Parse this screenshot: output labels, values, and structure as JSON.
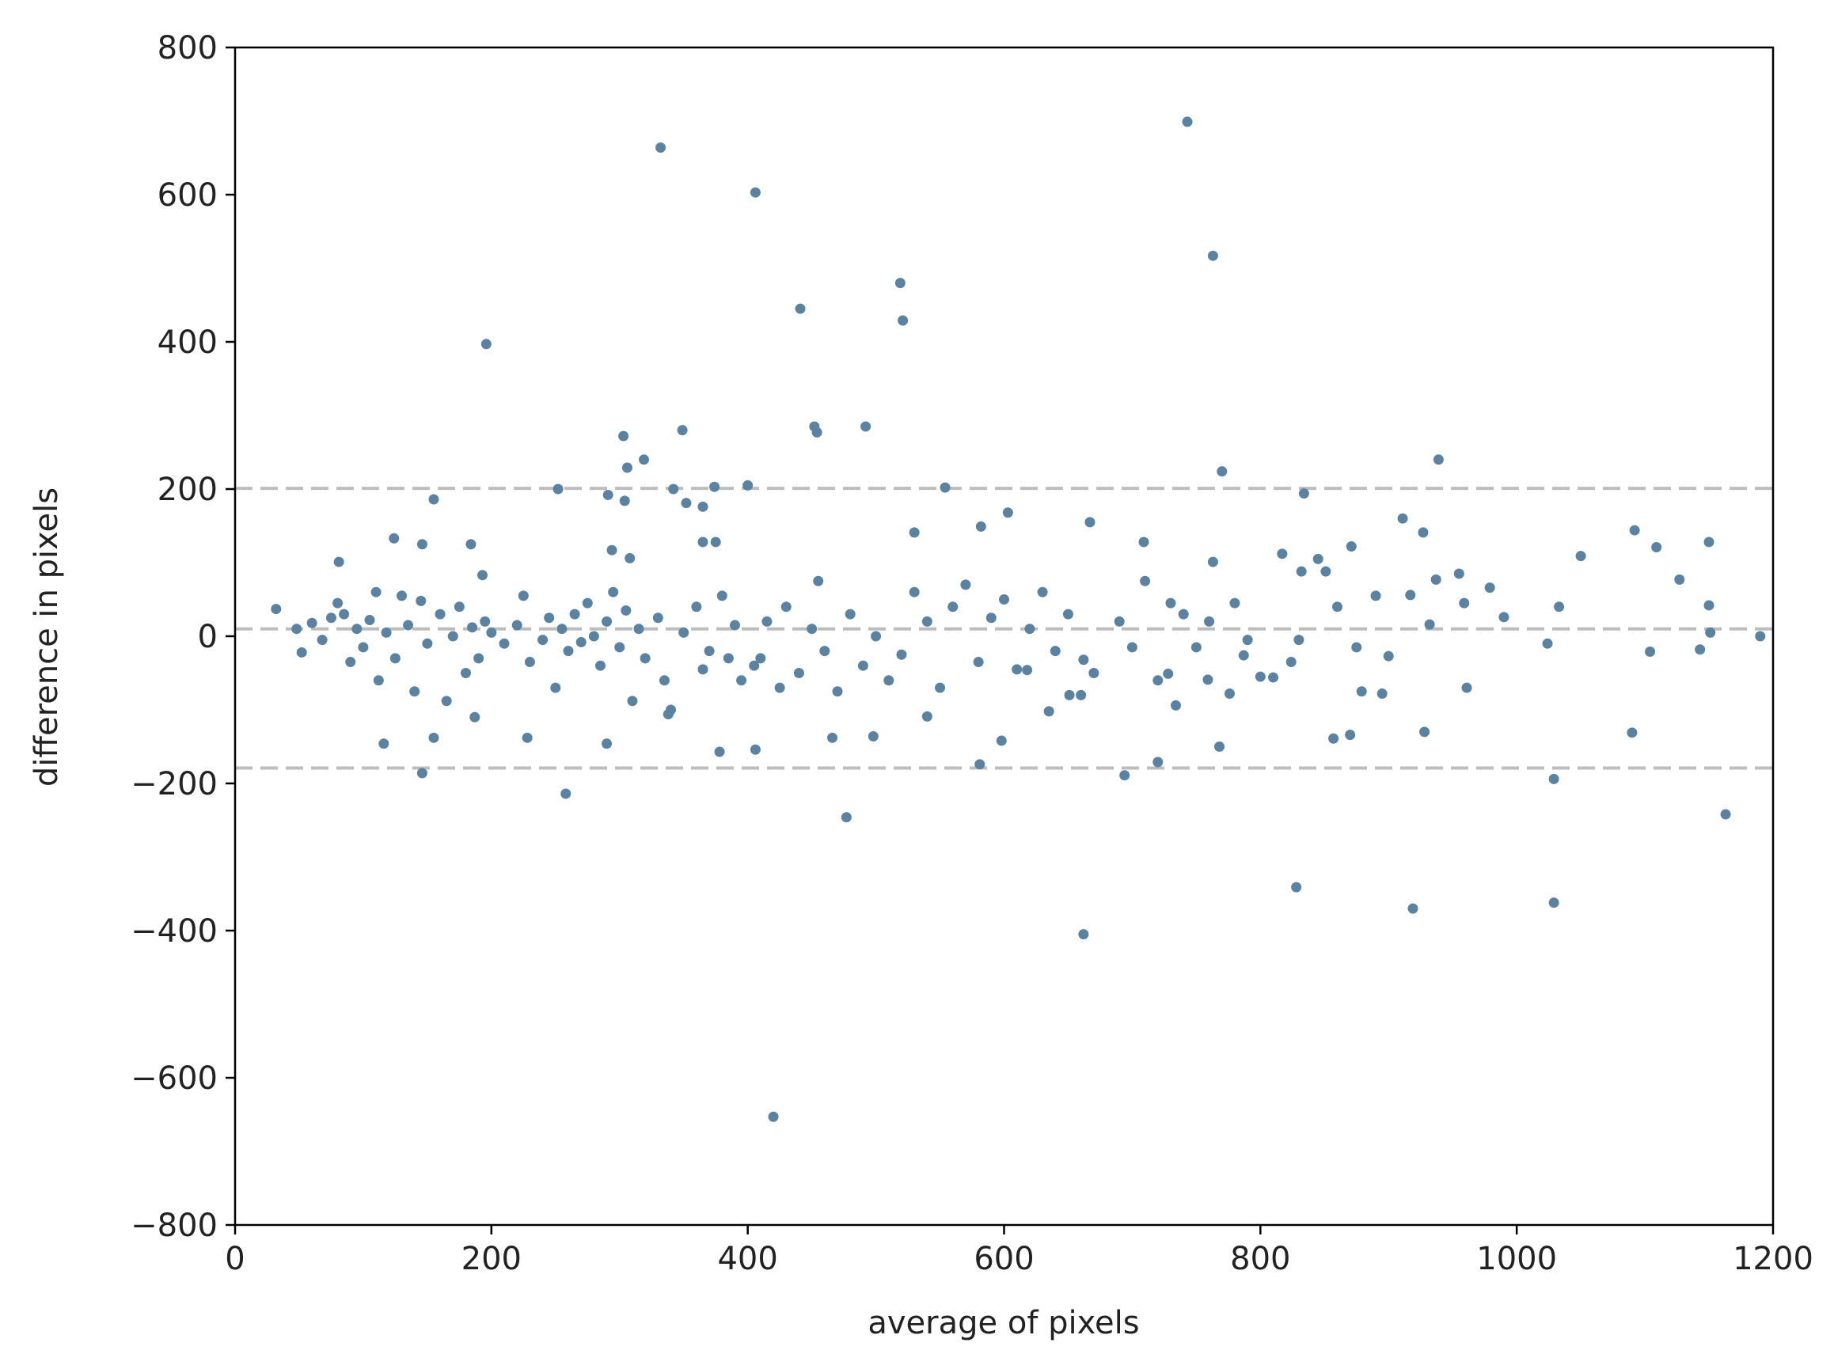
{
  "chart_data": {
    "type": "scatter",
    "xlabel": "average of pixels",
    "ylabel": "difference in pixels",
    "color": "#5b82a1",
    "reference_lines": [
      201,
      10,
      -179
    ],
    "xlim": [
      0,
      1200
    ],
    "xticks": [
      0,
      200,
      400,
      600,
      800,
      1000,
      1200
    ],
    "ylim": [
      -800,
      800
    ],
    "yticks": [
      {
        "value": -800,
        "label": "−800"
      },
      {
        "value": -600,
        "label": "−600"
      },
      {
        "value": -400,
        "label": "−400"
      },
      {
        "value": -200,
        "label": "−200"
      },
      0,
      200,
      400,
      600,
      800
    ],
    "x": [
      332,
      406,
      743,
      763,
      196,
      441,
      519,
      521,
      452,
      454,
      492,
      349,
      303,
      319,
      306,
      939,
      770,
      252,
      342,
      374,
      400,
      554,
      291,
      304,
      155,
      834,
      352,
      365,
      603,
      667,
      582,
      911,
      927,
      1092,
      124,
      365,
      375,
      709,
      1150,
      1109,
      146,
      184,
      530,
      294,
      871,
      1050,
      817,
      763,
      81,
      308,
      832,
      851,
      1127,
      937,
      955,
      979,
      193,
      990,
      1150,
      1033,
      1190,
      116,
      146,
      155,
      258,
      228,
      290,
      378,
      406,
      477,
      466,
      498,
      420,
      662,
      828,
      919,
      1029,
      1029,
      1163,
      1090,
      928,
      694,
      720,
      581,
      598,
      768,
      187,
      338,
      540,
      961,
      1104,
      1143,
      1024,
      635,
      776,
      857,
      870,
      879,
      895,
      810,
      759,
      728,
      734,
      787,
      824,
      900,
      662,
      618,
      651,
      917,
      932,
      959,
      1151,
      32,
      48,
      52,
      60,
      68,
      75,
      80,
      85,
      90,
      95,
      100,
      105,
      110,
      112,
      118,
      125,
      130,
      135,
      140,
      145,
      150,
      160,
      165,
      170,
      175,
      180,
      185,
      190,
      195,
      200,
      210,
      220,
      225,
      230,
      240,
      245,
      250,
      255,
      260,
      265,
      270,
      275,
      280,
      285,
      290,
      295,
      300,
      305,
      310,
      315,
      320,
      330,
      335,
      340,
      350,
      360,
      365,
      370,
      380,
      385,
      390,
      395,
      405,
      410,
      415,
      425,
      430,
      440,
      450,
      455,
      460,
      470,
      480,
      490,
      500,
      510,
      520,
      530,
      540,
      550,
      560,
      570,
      580,
      590,
      600,
      610,
      620,
      630,
      640,
      650,
      660,
      670,
      690,
      700,
      710,
      720,
      730,
      740,
      750,
      760,
      780,
      790,
      800,
      830,
      845,
      860,
      875,
      890
    ],
    "values": [
      664,
      603,
      699,
      517,
      397,
      445,
      480,
      429,
      285,
      277,
      285,
      280,
      272,
      240,
      229,
      240,
      224,
      200,
      200,
      203,
      205,
      202,
      192,
      184,
      186,
      194,
      181,
      176,
      168,
      155,
      149,
      160,
      141,
      144,
      133,
      128,
      128,
      128,
      128,
      121,
      125,
      125,
      141,
      117,
      122,
      109,
      112,
      101,
      101,
      106,
      88,
      88,
      77,
      77,
      85,
      66,
      83,
      26,
      42,
      40,
      0,
      -146,
      -186,
      -138,
      -214,
      -138,
      -146,
      -157,
      -154,
      -246,
      -138,
      -136,
      -653,
      -405,
      -341,
      -370,
      -362,
      -194,
      -242,
      -131,
      -130,
      -189,
      -171,
      -174,
      -142,
      -150,
      -110,
      -106,
      -109,
      -70,
      -21,
      -18,
      -10,
      -102,
      -78,
      -139,
      -134,
      -75,
      -78,
      -56,
      -59,
      -51,
      -94,
      -26,
      -35,
      -27,
      -32,
      -46,
      -80,
      56,
      16,
      45,
      5,
      37,
      10,
      -22,
      18,
      -5,
      25,
      45,
      30,
      -35,
      10,
      -15,
      22,
      60,
      -60,
      5,
      -30,
      55,
      15,
      -75,
      48,
      -10,
      30,
      -88,
      0,
      40,
      -50,
      12,
      -30,
      20,
      5,
      -10,
      15,
      55,
      -35,
      -5,
      25,
      -70,
      10,
      -20,
      30,
      -8,
      45,
      0,
      -40,
      20,
      60,
      -15,
      35,
      -88,
      10,
      -30,
      25,
      -60,
      -100,
      5,
      40,
      -45,
      -20,
      55,
      -30,
      15,
      -60,
      -40,
      -30,
      20,
      -70,
      40,
      -50,
      10,
      75,
      -20,
      -75,
      30,
      -40,
      0,
      -60,
      -25,
      60,
      20,
      -70,
      40,
      70,
      -35,
      25,
      50,
      -45,
      10,
      60,
      -20,
      30,
      -80,
      -50,
      20,
      -15,
      75,
      -60,
      45,
      30,
      -15,
      20,
      45,
      -5,
      -55,
      -5,
      105,
      40,
      -15,
      55
    ]
  }
}
